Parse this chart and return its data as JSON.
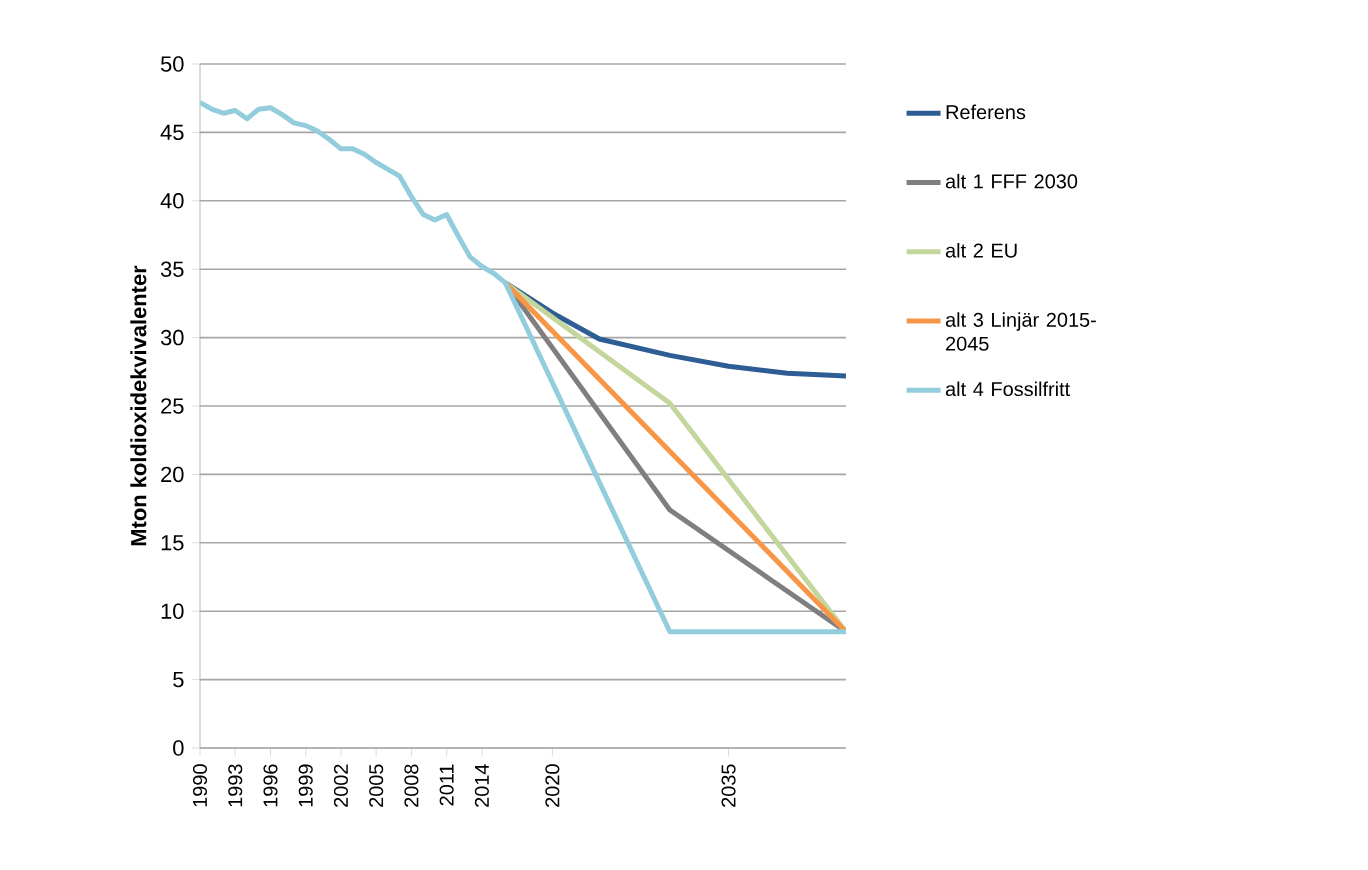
{
  "chart_data": {
    "type": "line",
    "ylabel": "Mton koldioxidekvivalenter",
    "xlim": [
      1990,
      2045
    ],
    "ylim": [
      0,
      50
    ],
    "xticks": [
      1990,
      1993,
      1996,
      1999,
      2002,
      2005,
      2008,
      2011,
      2014,
      2020,
      2035
    ],
    "yticks": [
      0,
      5,
      10,
      15,
      20,
      25,
      30,
      35,
      40,
      45,
      50
    ],
    "grid": "y",
    "legend": "right",
    "marker": "none",
    "line_style": "solid",
    "series": [
      {
        "name": "Referens",
        "color": "#2e5d95",
        "x": [
          2016,
          2020,
          2024,
          2030,
          2035,
          2040,
          2045
        ],
        "values": [
          34.0,
          31.8,
          29.9,
          28.7,
          27.9,
          27.4,
          27.2
        ]
      },
      {
        "name": "alt 1 FFF 2030",
        "color": "#7f7f7f",
        "x": [
          2016,
          2030,
          2045
        ],
        "values": [
          34.0,
          17.4,
          8.5
        ]
      },
      {
        "name": "alt 2 EU",
        "color": "#c3d69b",
        "x": [
          2016,
          2030,
          2045
        ],
        "values": [
          34.0,
          25.2,
          8.5
        ]
      },
      {
        "name": "alt 3 Linjär 2015-2045",
        "color": "#f79646",
        "x": [
          2016,
          2045
        ],
        "values": [
          34.0,
          8.5
        ]
      },
      {
        "name": "alt 4 Fossilfritt",
        "color": "#93cddd",
        "x": [
          1990,
          1991,
          1992,
          1993,
          1994,
          1995,
          1996,
          1997,
          1998,
          1999,
          2000,
          2001,
          2002,
          2003,
          2004,
          2005,
          2006,
          2007,
          2008,
          2009,
          2010,
          2011,
          2012,
          2013,
          2014,
          2015,
          2016,
          2030,
          2045
        ],
        "values": [
          47.2,
          46.7,
          46.4,
          46.6,
          46.0,
          46.7,
          46.8,
          46.3,
          45.7,
          45.5,
          45.1,
          44.5,
          43.8,
          43.8,
          43.4,
          42.8,
          42.3,
          41.8,
          40.3,
          39.0,
          38.6,
          39.0,
          37.4,
          35.9,
          35.2,
          34.7,
          34.0,
          8.5,
          8.5
        ]
      }
    ]
  }
}
